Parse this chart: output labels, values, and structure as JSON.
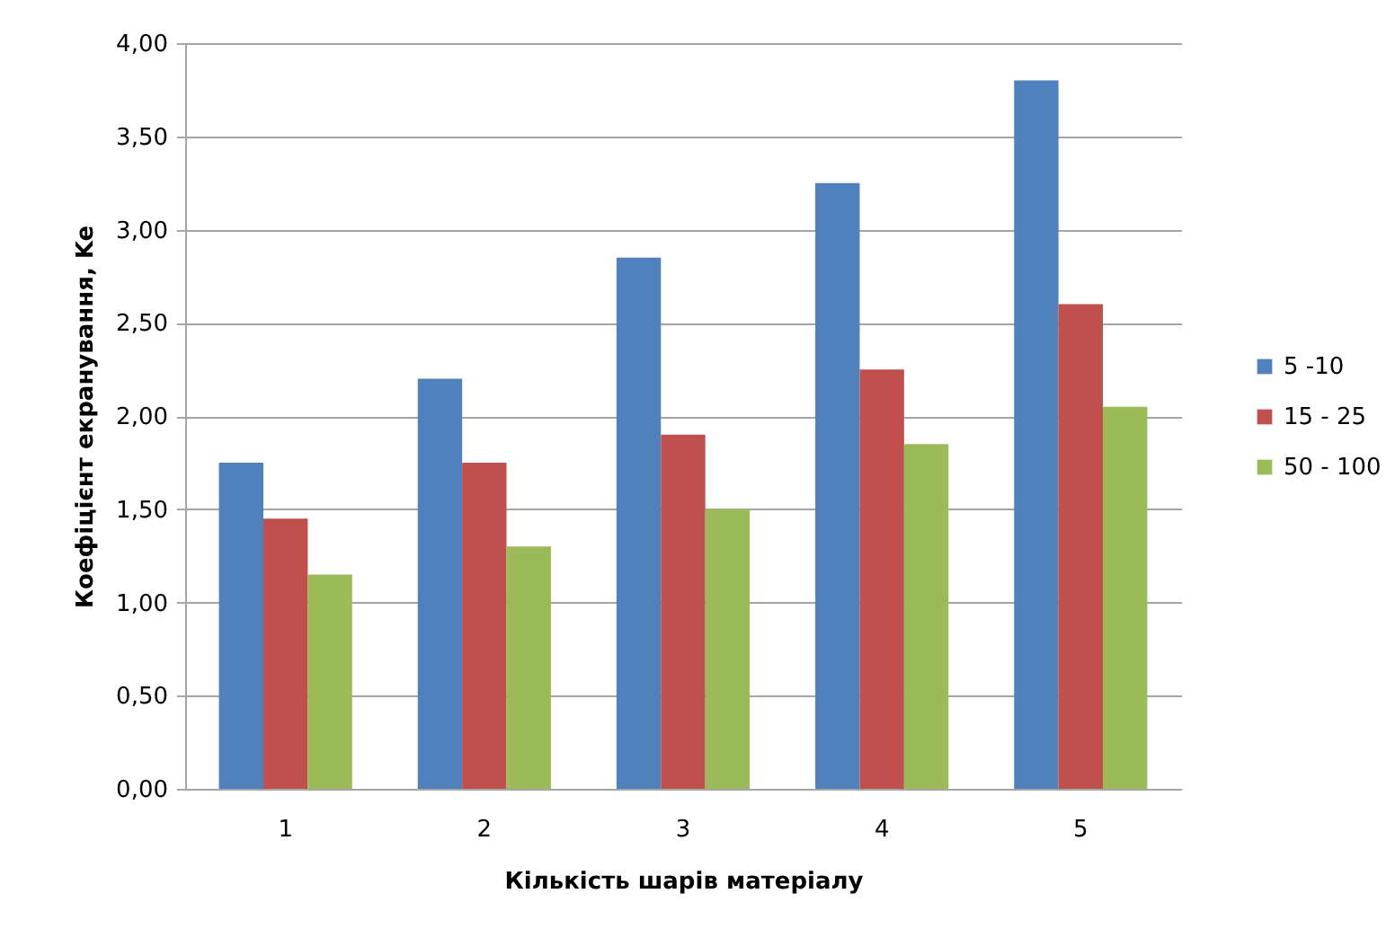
{
  "chart_data": {
    "type": "bar",
    "xlabel": "Кількість шарів матеріалу",
    "ylabel": "Коефіцієнт екранування, Ke",
    "categories": [
      "1",
      "2",
      "3",
      "4",
      "5"
    ],
    "series": [
      {
        "name": "5 -10",
        "color": "#4f81bd",
        "values": [
          1.75,
          2.2,
          2.85,
          3.25,
          3.8
        ]
      },
      {
        "name": "15 - 25",
        "color": "#c0504d",
        "values": [
          1.45,
          1.75,
          1.9,
          2.25,
          2.6
        ]
      },
      {
        "name": "50 - 100",
        "color": "#9bbb59",
        "values": [
          1.15,
          1.3,
          1.5,
          1.85,
          2.05
        ]
      }
    ],
    "ylim": [
      0,
      4
    ],
    "yticks": [
      {
        "value": 0,
        "label": "0,00"
      },
      {
        "value": 0.5,
        "label": "0,50"
      },
      {
        "value": 1,
        "label": "1,00"
      },
      {
        "value": 1.5,
        "label": "1,50"
      },
      {
        "value": 2,
        "label": "2,00"
      },
      {
        "value": 2.5,
        "label": "2,50"
      },
      {
        "value": 3,
        "label": "3,00"
      },
      {
        "value": 3.5,
        "label": "3,50"
      },
      {
        "value": 4,
        "label": "4,00"
      }
    ],
    "grid": "y",
    "legend": "right"
  }
}
